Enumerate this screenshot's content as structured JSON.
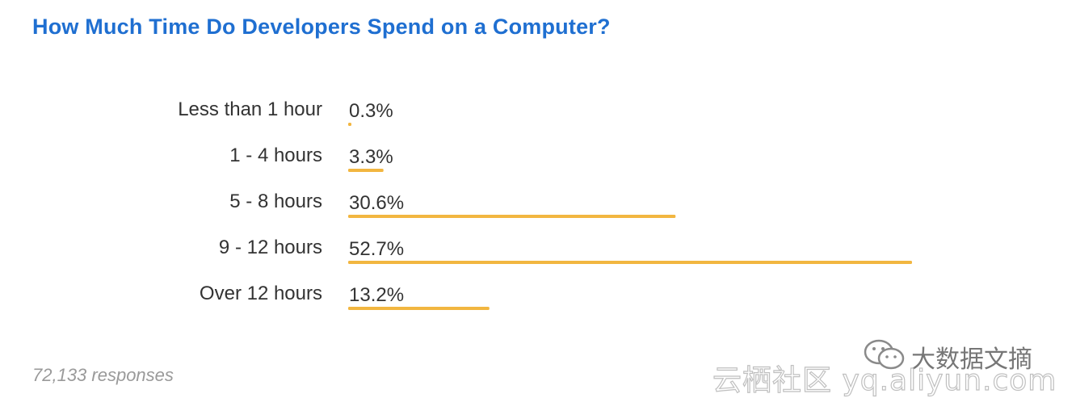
{
  "title": "How Much Time Do Developers Spend on a Computer?",
  "footer": "72,133 responses",
  "watermark": {
    "chinese_label": "大数据文摘",
    "site": "云栖社区 yq.aliyun.com",
    "icon": "wechat-icon"
  },
  "colors": {
    "title": "#1f6fd1",
    "bar": "#f2b640",
    "label": "#333333",
    "footer": "#9a9a9a"
  },
  "chart_data": {
    "type": "bar",
    "orientation": "horizontal",
    "title": "How Much Time Do Developers Spend on a Computer?",
    "categories": [
      "Less than 1 hour",
      "1 - 4 hours",
      "5 - 8 hours",
      "9 - 12 hours",
      "Over 12 hours"
    ],
    "values": [
      0.3,
      3.3,
      30.6,
      52.7,
      13.2
    ],
    "value_labels": [
      "0.3%",
      "3.3%",
      "30.6%",
      "52.7%",
      "13.2%"
    ],
    "unit": "%",
    "xlim": [
      0,
      52.7
    ],
    "grid": false,
    "legend": "none"
  }
}
